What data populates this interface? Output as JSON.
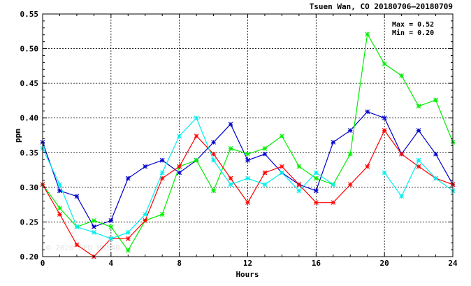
{
  "chart_data": {
    "type": "line",
    "title": "Tsuen Wan, CO 20180706–20180709",
    "xlabel": "Hours",
    "ylabel": "ppm",
    "xlim": [
      0,
      24
    ],
    "ylim": [
      0.2,
      0.55
    ],
    "x_ticks": [
      "0",
      "4",
      "8",
      "12",
      "16",
      "20",
      "24"
    ],
    "y_ticks": [
      "0.20",
      "0.25",
      "0.30",
      "0.35",
      "0.40",
      "0.45",
      "0.50",
      "0.55"
    ],
    "grid": true,
    "annotations": {
      "max": "Max = 0.52",
      "min": "Min = 0.20"
    },
    "watermark": "© 2020 EPD HKSAR",
    "x": [
      0,
      1,
      2,
      3,
      4,
      5,
      6,
      7,
      8,
      9,
      10,
      11,
      12,
      13,
      14,
      15,
      16,
      17,
      18,
      19,
      20,
      21,
      22,
      23,
      24
    ],
    "series": [
      {
        "color": "#0000cc",
        "values": [
          0.365,
          0.295,
          0.287,
          0.243,
          0.252,
          0.313,
          0.33,
          0.339,
          0.321,
          0.339,
          0.365,
          0.391,
          0.339,
          0.348,
          0.321,
          0.304,
          0.295,
          0.365,
          0.382,
          0.409,
          0.4,
          0.348,
          0.382,
          0.348,
          0.304
        ]
      },
      {
        "color": "#00ee00",
        "values": [
          0.304,
          0.27,
          0.243,
          0.252,
          0.243,
          0.209,
          0.252,
          0.261,
          0.33,
          0.339,
          0.295,
          0.356,
          0.348,
          0.356,
          0.374,
          0.33,
          0.313,
          0.304,
          0.348,
          0.521,
          0.478,
          0.461,
          0.417,
          0.426,
          0.365
        ]
      },
      {
        "color": "#ff0000",
        "values": [
          0.304,
          0.261,
          0.217,
          0.2,
          0.226,
          0.226,
          0.252,
          0.313,
          0.33,
          0.374,
          0.348,
          0.313,
          0.278,
          0.321,
          0.33,
          0.304,
          0.278,
          0.278,
          0.304,
          0.33,
          0.382,
          0.348,
          0.33,
          0.313,
          0.304
        ]
      },
      {
        "color": "#00eeee",
        "values": [
          0.356,
          0.304,
          0.243,
          0.235,
          0.226,
          0.235,
          0.261,
          0.321,
          0.374,
          0.4,
          0.339,
          0.304,
          0.313,
          0.304,
          0.321,
          0.295,
          0.321,
          0.304,
          null,
          null,
          0.321,
          0.287,
          0.339,
          0.313,
          0.295
        ]
      }
    ]
  }
}
